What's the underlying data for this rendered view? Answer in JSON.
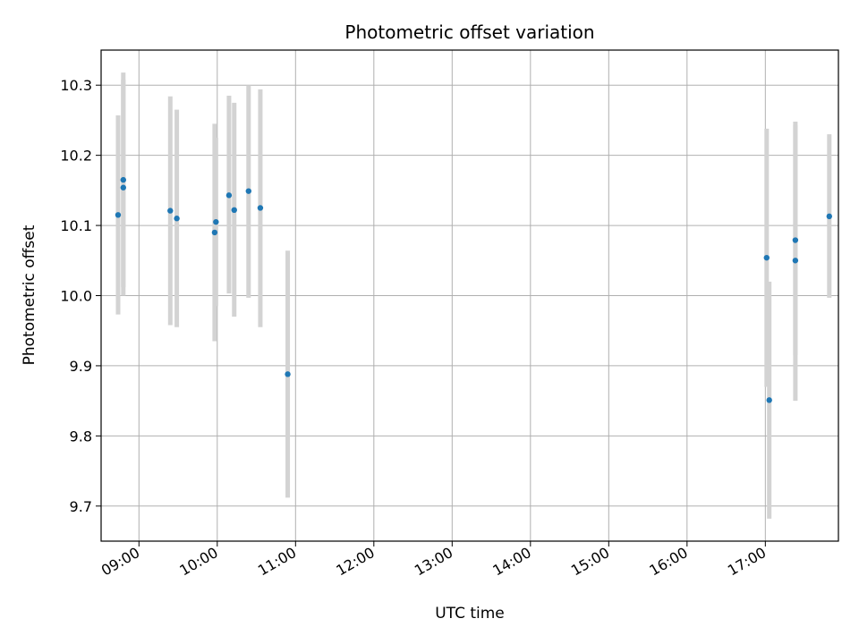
{
  "chart_data": {
    "type": "scatter",
    "title": "Photometric offset variation",
    "xlabel": "UTC time",
    "ylabel": "Photometric offset",
    "x_tick_labels": [
      "09:00",
      "10:00",
      "11:00",
      "12:00",
      "13:00",
      "14:00",
      "15:00",
      "16:00",
      "17:00"
    ],
    "x_ticks": [
      "09:00",
      "10:00",
      "11:00",
      "12:00",
      "13:00",
      "14:00",
      "15:00",
      "16:00",
      "17:00"
    ],
    "xlim": [
      "08:31",
      "17:56"
    ],
    "y_ticks": [
      9.7,
      9.8,
      9.9,
      10.0,
      10.1,
      10.2,
      10.3
    ],
    "y_tick_labels": [
      "9.7",
      "9.8",
      "9.9",
      "10.0",
      "10.1",
      "10.2",
      "10.3"
    ],
    "ylim": [
      9.65,
      10.35
    ],
    "grid": true,
    "point_color": "#1f77b4",
    "errorbar_color": "#d3d3d3",
    "points": [
      {
        "x": "08:44",
        "y": 10.115,
        "ymin": 9.973,
        "ymax": 10.257
      },
      {
        "x": "08:48",
        "y": 10.165,
        "ymin": 10.012,
        "ymax": 10.318
      },
      {
        "x": "08:48",
        "y": 10.154,
        "ymin": 10.0,
        "ymax": 10.308
      },
      {
        "x": "09:24",
        "y": 10.121,
        "ymin": 9.958,
        "ymax": 10.284
      },
      {
        "x": "09:29",
        "y": 10.11,
        "ymin": 9.955,
        "ymax": 10.265
      },
      {
        "x": "09:58",
        "y": 10.09,
        "ymin": 9.935,
        "ymax": 10.245
      },
      {
        "x": "09:59",
        "y": 10.105,
        "ymin": 9.985,
        "ymax": 10.225
      },
      {
        "x": "10:09",
        "y": 10.143,
        "ymin": 10.003,
        "ymax": 10.285
      },
      {
        "x": "10:13",
        "y": 10.122,
        "ymin": 9.97,
        "ymax": 10.275
      },
      {
        "x": "10:24",
        "y": 10.149,
        "ymin": 9.997,
        "ymax": 10.3
      },
      {
        "x": "10:33",
        "y": 10.125,
        "ymin": 9.955,
        "ymax": 10.294
      },
      {
        "x": "10:54",
        "y": 9.888,
        "ymin": 9.712,
        "ymax": 10.064
      },
      {
        "x": "17:01",
        "y": 10.054,
        "ymin": 9.87,
        "ymax": 10.238
      },
      {
        "x": "17:03",
        "y": 9.851,
        "ymin": 9.682,
        "ymax": 10.02
      },
      {
        "x": "17:23",
        "y": 10.079,
        "ymin": 9.915,
        "ymax": 10.243
      },
      {
        "x": "17:23",
        "y": 10.05,
        "ymin": 9.85,
        "ymax": 10.248
      },
      {
        "x": "17:49",
        "y": 10.113,
        "ymin": 9.997,
        "ymax": 10.23
      }
    ]
  }
}
